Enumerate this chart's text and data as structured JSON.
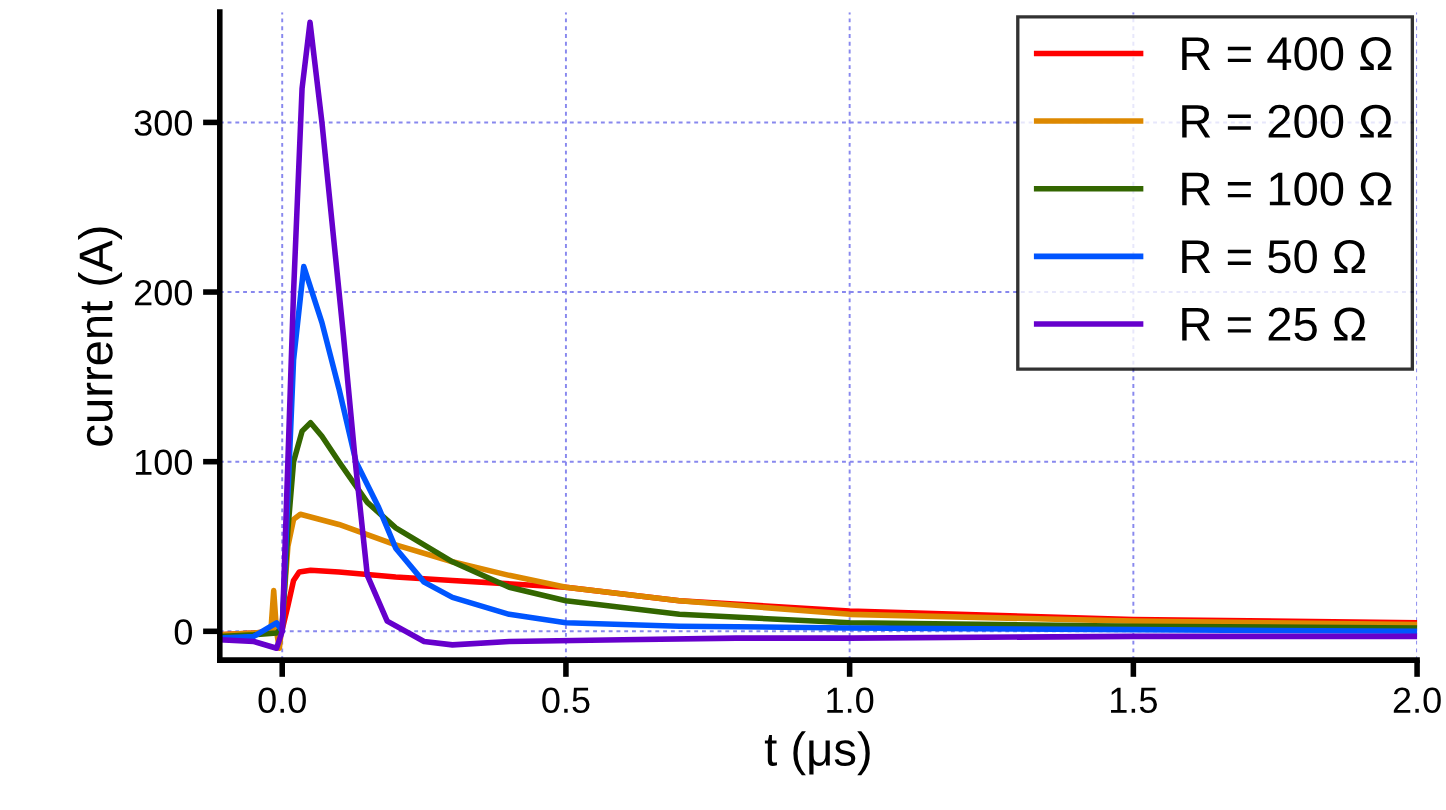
{
  "chart_data": {
    "type": "line",
    "xlabel": "t (μs)",
    "ylabel": "current (A)",
    "xlim": [
      -0.11,
      2.0
    ],
    "ylim": [
      -17,
      365
    ],
    "xticks": [
      {
        "value": 0,
        "label": "0.0"
      },
      0.5,
      {
        "value": 1,
        "label": "1.0"
      },
      1.5,
      {
        "value": 2,
        "label": "2.0"
      }
    ],
    "yticks": [
      0,
      100,
      200,
      300
    ],
    "grid": true,
    "legend": "top right",
    "line_style": "solid",
    "marker": "none",
    "series": [
      {
        "name": "R = 400 Ω",
        "color": "#ff0000",
        "x": [
          -0.11,
          -0.05,
          -0.01,
          0.0,
          0.01,
          0.02,
          0.03,
          0.05,
          0.1,
          0.2,
          0.3,
          0.5,
          0.7,
          1.0,
          1.5,
          2.0
        ],
        "values": [
          -2,
          -1,
          0,
          1,
          15,
          30,
          35,
          36,
          35,
          32,
          30,
          26,
          18,
          12,
          7,
          5
        ]
      },
      {
        "name": "R = 200 Ω",
        "color": "#dd8800",
        "x": [
          -0.11,
          -0.05,
          -0.02,
          -0.015,
          -0.01,
          -0.005,
          0.0,
          0.01,
          0.02,
          0.032,
          0.1,
          0.2,
          0.3,
          0.4,
          0.5,
          0.7,
          1.0,
          1.5,
          2.0
        ],
        "values": [
          -2,
          -1,
          0,
          24,
          0,
          -10,
          5,
          50,
          66,
          69,
          63,
          51,
          41,
          33,
          26,
          18,
          10,
          6,
          4
        ]
      },
      {
        "name": "R = 100 Ω",
        "color": "#336600",
        "x": [
          -0.11,
          -0.05,
          -0.01,
          0.0,
          0.01,
          0.02,
          0.035,
          0.05,
          0.07,
          0.1,
          0.15,
          0.2,
          0.3,
          0.4,
          0.5,
          0.7,
          1.0,
          1.5,
          2.0
        ],
        "values": [
          -3,
          -2,
          -1,
          2,
          60,
          100,
          118,
          123,
          115,
          100,
          76,
          61,
          41,
          26,
          18,
          10,
          5,
          3,
          2
        ]
      },
      {
        "name": "R = 50 Ω",
        "color": "#0055ff",
        "x": [
          -0.11,
          -0.05,
          -0.01,
          0.0,
          0.01,
          0.02,
          0.038,
          0.07,
          0.1,
          0.13,
          0.17,
          0.2,
          0.25,
          0.3,
          0.4,
          0.5,
          0.7,
          1.0,
          1.5,
          2.0
        ],
        "values": [
          -4,
          -3,
          5,
          0,
          80,
          160,
          215,
          182,
          143,
          100,
          73,
          49,
          29,
          20,
          10,
          5,
          3,
          2,
          1,
          0
        ]
      },
      {
        "name": "R = 25 Ω",
        "color": "#6600cc",
        "x": [
          -0.11,
          -0.05,
          -0.01,
          0.0,
          0.01,
          0.02,
          0.035,
          0.049,
          0.07,
          0.108,
          0.13,
          0.15,
          0.185,
          0.25,
          0.3,
          0.4,
          0.6,
          0.8,
          1.0,
          1.5,
          2.0
        ],
        "values": [
          -5,
          -6,
          -10,
          0,
          100,
          200,
          320,
          359,
          300,
          174,
          96,
          33,
          6,
          -6,
          -8,
          -6,
          -5,
          -4,
          -4,
          -3,
          -3
        ]
      }
    ]
  }
}
